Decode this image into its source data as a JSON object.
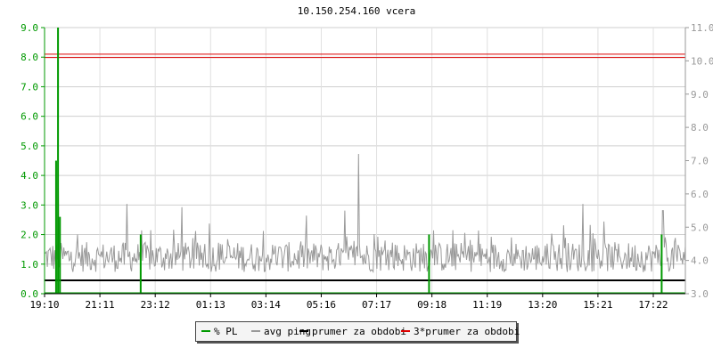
{
  "title": "10.150.254.160 vcera",
  "chart_data": {
    "type": "line",
    "title": "10.150.254.160 vcera",
    "x_ticks": [
      "19:10",
      "21:11",
      "23:12",
      "01:13",
      "03:14",
      "05:16",
      "07:17",
      "09:18",
      "11:19",
      "13:20",
      "15:21",
      "17:22"
    ],
    "left_axis": {
      "ticks": [
        "0.0",
        "1.0",
        "2.0",
        "3.0",
        "4.0",
        "5.0",
        "6.0",
        "7.0",
        "8.0",
        "9.0"
      ],
      "range": [
        0,
        9
      ],
      "color": "#009900"
    },
    "right_axis": {
      "ticks": [
        "3.0",
        "4.0",
        "5.0",
        "6.0",
        "7.0",
        "8.0",
        "9.0",
        "10.0",
        "11.0"
      ],
      "range": [
        3,
        11
      ],
      "color": "#999999"
    },
    "grid": true,
    "series": [
      {
        "name": "% PL",
        "color": "#009900",
        "axis": "left",
        "spikes": [
          {
            "t": 0.021,
            "value": 9.0
          },
          {
            "t": 0.018,
            "value": 4.5
          },
          {
            "t": 0.024,
            "value": 2.6
          },
          {
            "t": 0.15,
            "value": 2.0
          },
          {
            "t": 0.6,
            "value": 2.0
          },
          {
            "t": 0.963,
            "value": 2.0
          }
        ]
      },
      {
        "name": "avg ping",
        "color": "#999999",
        "axis": "right",
        "baseline": 4.1,
        "noise": 0.45,
        "peaks": [
          {
            "t": 0.021,
            "value": 6.5
          },
          {
            "t": 0.129,
            "value": 5.7
          },
          {
            "t": 0.214,
            "value": 5.6
          },
          {
            "t": 0.468,
            "value": 5.5
          },
          {
            "t": 0.49,
            "value": 7.2
          },
          {
            "t": 0.84,
            "value": 5.7
          },
          {
            "t": 0.965,
            "value": 5.5
          }
        ]
      },
      {
        "name": "prumer za obdobi",
        "color": "#000000",
        "axis": "left",
        "value": 0.45
      },
      {
        "name": "3*prumer za obdobi",
        "color": "#dd0000",
        "axis": "right",
        "values": [
          10.1,
          10.2
        ]
      }
    ],
    "legend": {
      "placement": "bottom-center",
      "entries": [
        "% PL",
        "avg ping",
        "prumer za obdobi",
        "3*prumer za obdobi"
      ]
    }
  }
}
